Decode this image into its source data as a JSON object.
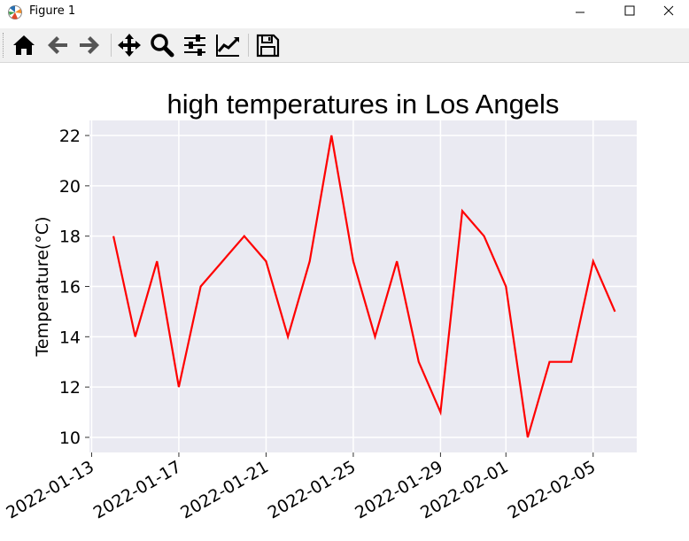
{
  "window": {
    "title": "Figure 1",
    "minimize_symbol": "—",
    "maximize_symbol": "☐",
    "close_symbol": "✕"
  },
  "toolbar": {
    "icons": [
      "home-icon",
      "back-arrow-icon",
      "forward-arrow-icon",
      "pan-move-icon",
      "zoom-magnifier-icon",
      "configure-subplots-icon",
      "edit-axis-icon",
      "save-disk-icon"
    ]
  },
  "chart_data": {
    "type": "line",
    "title": "high temperatures in Los Angels",
    "xlabel": "",
    "ylabel": "Temperature(°C)",
    "x": [
      "2022-01-14",
      "2022-01-15",
      "2022-01-16",
      "2022-01-17",
      "2022-01-18",
      "2022-01-19",
      "2022-01-20",
      "2022-01-21",
      "2022-01-22",
      "2022-01-23",
      "2022-01-24",
      "2022-01-25",
      "2022-01-26",
      "2022-01-27",
      "2022-01-28",
      "2022-01-29",
      "2022-01-30",
      "2022-01-31",
      "2022-02-01",
      "2022-02-02",
      "2022-02-03",
      "2022-02-04",
      "2022-02-05",
      "2022-02-06"
    ],
    "series": [
      {
        "values": [
          18,
          14,
          17,
          12,
          16,
          17,
          18,
          17,
          14,
          17,
          22,
          17,
          14,
          17,
          13,
          11,
          19,
          18,
          16,
          10,
          13,
          13,
          17,
          15
        ],
        "color": "#ff0000"
      }
    ],
    "xlim": [
      "2022-01-12.9",
      "2022-02-07"
    ],
    "ylim": [
      9.4,
      22.6
    ],
    "xticks": [
      "2022-01-13",
      "2022-01-17",
      "2022-01-21",
      "2022-01-25",
      "2022-01-29",
      "2022-02-01",
      "2022-02-05"
    ],
    "yticks": [
      10,
      12,
      14,
      16,
      18,
      20,
      22
    ],
    "grid": true,
    "background": "#eaeaf2",
    "gridcolor": "#ffffff"
  }
}
